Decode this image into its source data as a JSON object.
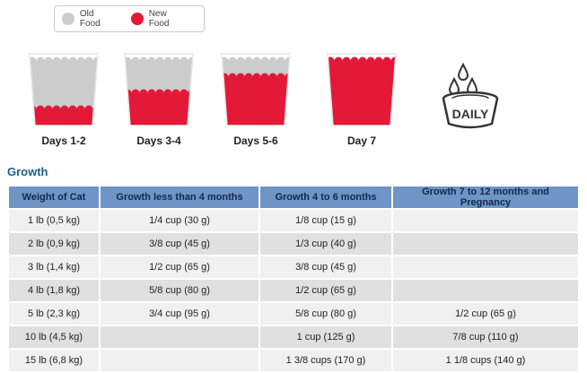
{
  "legend": {
    "old_label": "Old Food",
    "new_label": "New Food",
    "old_color": "#cccccc",
    "new_color": "#e31937"
  },
  "stages": [
    {
      "label": "Days 1-2",
      "new_fraction": 0.25
    },
    {
      "label": "Days 3-4",
      "new_fraction": 0.5
    },
    {
      "label": "Days 5-6",
      "new_fraction": 0.75
    },
    {
      "label": "Day 7",
      "new_fraction": 1.0
    }
  ],
  "daily_icon": {
    "label": "DAILY",
    "icon": "water-bowl-icon"
  },
  "section_title": "Growth",
  "table": {
    "headers": [
      "Weight of Cat",
      "Growth less than 4 months",
      "Growth 4 to 6 months",
      "Growth 7 to 12 months and Pregnancy"
    ],
    "rows": [
      [
        "1 lb (0,5 kg)",
        "1/4 cup (30 g)",
        "1/8 cup (15 g)",
        ""
      ],
      [
        "2 lb (0,9 kg)",
        "3/8 cup (45 g)",
        "1/3 cup (40 g)",
        ""
      ],
      [
        "3 lb (1,4 kg)",
        "1/2 cup (65 g)",
        "3/8 cup (45 g)",
        ""
      ],
      [
        "4 lb (1,8 kg)",
        "5/8 cup (80 g)",
        "1/2 cup (65 g)",
        ""
      ],
      [
        "5 lb (2,3 kg)",
        "3/4 cup (95 g)",
        "5/8 cup (80 g)",
        "1/2 cup (65 g)"
      ],
      [
        "10 lb (4,5 kg)",
        "",
        "1 cup (125 g)",
        "7/8 cup (110 g)"
      ],
      [
        "15 lb (6,8 kg)",
        "",
        "1 3/8 cups (170 g)",
        "1 1/8 cups (140 g)"
      ]
    ]
  }
}
